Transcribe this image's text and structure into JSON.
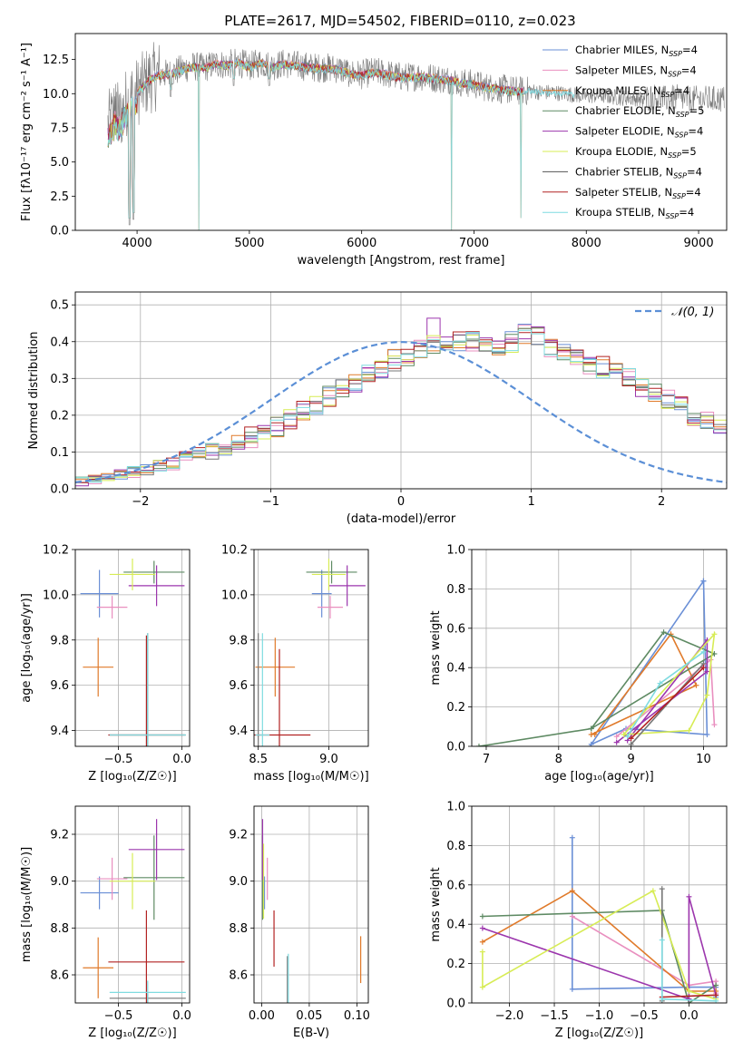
{
  "figure": {
    "title": "PLATE=2617, MJD=54502, FIBERID=0110, z=0.023",
    "colors": {
      "chabrier_miles": "#6a8fd6",
      "salpeter_miles": "#e98fbf",
      "kroupa_miles": "#e07a2a",
      "chabrier_elodie": "#5e8a63",
      "salpeter_elodie": "#9c36ad",
      "kroupa_elodie": "#d7ec55",
      "chabrier_stelib": "#777777",
      "salpeter_stelib": "#b22222",
      "kroupa_stelib": "#7fdbe0",
      "normal": "#5b8fd6",
      "grid": "#b0b0b0"
    }
  },
  "chart_data": [
    {
      "id": "spectrum",
      "type": "line",
      "title": "PLATE=2617, MJD=54502, FIBERID=0110, z=0.023",
      "xlabel": "wavelength [Angstrom, rest frame]",
      "ylabel": "Flux [fλ10⁻¹⁷ erg cm⁻² s⁻¹ A⁻¹]",
      "xlim": [
        3450,
        9250
      ],
      "ylim": [
        0,
        14.4
      ],
      "xticks": [
        "4000",
        "5000",
        "6000",
        "7000",
        "8000",
        "9000"
      ],
      "yticks": [
        "0.0",
        "2.5",
        "5.0",
        "7.5",
        "10.0",
        "12.5"
      ],
      "grid": false,
      "legend_position": "top-right",
      "series": [
        {
          "name": "Chabrier MILES, N",
          "sub": "SSP",
          "suffix": "=4",
          "color": "#6a8fd6"
        },
        {
          "name": "Salpeter MILES, N",
          "sub": "SSP",
          "suffix": "=4",
          "color": "#e98fbf"
        },
        {
          "name": "Kroupa MILES, N",
          "sub": "SSP",
          "suffix": "=4",
          "color": "#e07a2a"
        },
        {
          "name": "Chabrier ELODIE, N",
          "sub": "SSP",
          "suffix": "=5",
          "color": "#5e8a63"
        },
        {
          "name": "Salpeter ELODIE, N",
          "sub": "SSP",
          "suffix": "=4",
          "color": "#9c36ad"
        },
        {
          "name": "Kroupa ELODIE, N",
          "sub": "SSP",
          "suffix": "=5",
          "color": "#d7ec55"
        },
        {
          "name": "Chabrier STELIB, N",
          "sub": "SSP",
          "suffix": "=4",
          "color": "#555555"
        },
        {
          "name": "Salpeter STELIB, N",
          "sub": "SSP",
          "suffix": "=4",
          "color": "#b22222"
        },
        {
          "name": "Kroupa STELIB, N",
          "sub": "SSP",
          "suffix": "=4",
          "color": "#7fdbe0"
        }
      ],
      "model_envelope": [
        [
          3740,
          7.6
        ],
        [
          3800,
          8.6
        ],
        [
          3850,
          8.2
        ],
        [
          3900,
          9.3
        ],
        [
          3950,
          9.8
        ],
        [
          4000,
          10.1
        ],
        [
          4100,
          11.0
        ],
        [
          4200,
          11.4
        ],
        [
          4300,
          11.5
        ],
        [
          4400,
          11.8
        ],
        [
          4500,
          12.0
        ],
        [
          4600,
          11.9
        ],
        [
          4700,
          12.2
        ],
        [
          4800,
          12.1
        ],
        [
          4900,
          12.3
        ],
        [
          5000,
          12.0
        ],
        [
          5100,
          12.3
        ],
        [
          5200,
          12.0
        ],
        [
          5300,
          12.2
        ],
        [
          5400,
          12.1
        ],
        [
          5500,
          12.0
        ],
        [
          5600,
          11.9
        ],
        [
          5700,
          11.9
        ],
        [
          5800,
          11.8
        ],
        [
          5900,
          11.5
        ],
        [
          6000,
          11.4
        ],
        [
          6100,
          11.6
        ],
        [
          6200,
          11.5
        ],
        [
          6300,
          11.3
        ],
        [
          6400,
          11.2
        ],
        [
          6500,
          11.3
        ],
        [
          6600,
          11.2
        ],
        [
          6700,
          11.1
        ],
        [
          6800,
          11.0
        ],
        [
          6900,
          10.8
        ],
        [
          7000,
          10.7
        ],
        [
          7100,
          10.5
        ],
        [
          7200,
          10.4
        ],
        [
          7300,
          10.3
        ],
        [
          7400,
          10.2
        ],
        [
          7500,
          10.2
        ],
        [
          7600,
          10.1
        ],
        [
          7700,
          10.1
        ],
        [
          7800,
          10.0
        ],
        [
          7900,
          9.9
        ],
        [
          8000,
          9.8
        ],
        [
          8100,
          9.9
        ],
        [
          8200,
          9.8
        ],
        [
          8300,
          9.7
        ],
        [
          8400,
          9.7
        ],
        [
          8500,
          9.6
        ],
        [
          8600,
          9.8
        ],
        [
          8700,
          9.6
        ],
        [
          8800,
          9.7
        ],
        [
          8900,
          9.6
        ]
      ],
      "absorption_dips": [
        [
          3933,
          0.4
        ],
        [
          3968,
          0.8
        ],
        [
          4300,
          9.8
        ],
        [
          4861,
          10.6
        ],
        [
          5175,
          10.6
        ],
        [
          5890,
          10.9
        ],
        [
          6563,
          10.8
        ],
        [
          6870,
          10.2
        ]
      ],
      "artifact_drops": [
        [
          4550,
          0.0
        ],
        [
          6800,
          0.0
        ],
        [
          7420,
          0.9
        ]
      ]
    },
    {
      "id": "residuals",
      "type": "bar",
      "xlabel": "(data-model)/error",
      "ylabel": "Normed distribution",
      "xlim": [
        -2.5,
        2.5
      ],
      "ylim": [
        0,
        0.535
      ],
      "xticks": [
        "−2",
        "−1",
        "0",
        "1",
        "2"
      ],
      "yticks": [
        "0.0",
        "0.1",
        "0.2",
        "0.3",
        "0.4",
        "0.5"
      ],
      "grid": true,
      "legend_position": "top-right",
      "reference_curve": {
        "name": "𝒩(0, 1)",
        "mean": 0,
        "sigma": 1
      },
      "bin_edges_start": -2.5,
      "bin_width": 0.1,
      "base_histogram": [
        0.02,
        0.025,
        0.03,
        0.04,
        0.045,
        0.05,
        0.06,
        0.07,
        0.08,
        0.09,
        0.1,
        0.11,
        0.125,
        0.14,
        0.155,
        0.17,
        0.19,
        0.21,
        0.23,
        0.25,
        0.27,
        0.29,
        0.31,
        0.33,
        0.35,
        0.36,
        0.38,
        0.39,
        0.395,
        0.4,
        0.4,
        0.395,
        0.39,
        0.4,
        0.42,
        0.41,
        0.38,
        0.37,
        0.36,
        0.34,
        0.33,
        0.32,
        0.3,
        0.28,
        0.26,
        0.24,
        0.22,
        0.2,
        0.18,
        0.165,
        0.15,
        0.135,
        0.12,
        0.105,
        0.095,
        0.08,
        0.07,
        0.06,
        0.05,
        0.045,
        0.04,
        0.035,
        0.03,
        0.028,
        0.025,
        0.022,
        0.02,
        0.02,
        0.02,
        0.02
      ]
    },
    {
      "id": "age_vs_Z",
      "type": "scatter",
      "xlabel": "Z [log₁₀(Z/Z☉)]",
      "ylabel": "age  [log₁₀(age/yr)]",
      "xlim": [
        -0.84,
        0.06
      ],
      "ylim": [
        9.33,
        10.2
      ],
      "xticks": [
        "−0.5",
        "0.0"
      ],
      "yticks": [
        "9.4",
        "9.6",
        "9.8",
        "10.0",
        "10.2"
      ],
      "grid": true,
      "points": [
        {
          "series": "Chabrier MILES",
          "x": -0.65,
          "y": 10.005,
          "dx": 0.15,
          "dy": 0.105
        },
        {
          "series": "Salpeter MILES",
          "x": -0.55,
          "y": 9.945,
          "dx": 0.12,
          "dy": 0.05
        },
        {
          "series": "Kroupa MILES",
          "x": -0.66,
          "y": 9.68,
          "dx": 0.12,
          "dy": 0.13
        },
        {
          "series": "Chabrier ELODIE",
          "x": -0.22,
          "y": 10.1,
          "dx": 0.24,
          "dy": 0.05
        },
        {
          "series": "Salpeter ELODIE",
          "x": -0.2,
          "y": 10.04,
          "dx": 0.22,
          "dy": 0.09
        },
        {
          "series": "Kroupa ELODIE",
          "x": -0.39,
          "y": 10.09,
          "dx": 0.18,
          "dy": 0.07
        },
        {
          "series": "Chabrier STELIB",
          "x": -0.27,
          "y": 9.38,
          "dx": 0.3,
          "dy": 0.45
        },
        {
          "series": "Salpeter STELIB",
          "x": -0.28,
          "y": 9.38,
          "dx": 0.3,
          "dy": 0.44
        },
        {
          "series": "Kroupa STELIB",
          "x": -0.27,
          "y": 9.38,
          "dx": 0.3,
          "dy": 0.45
        }
      ]
    },
    {
      "id": "age_vs_mass",
      "type": "scatter",
      "xlabel": "mass [log₁₀(M/M☉)]",
      "ylabel": "",
      "xlim": [
        8.47,
        9.28
      ],
      "ylim": [
        9.33,
        10.2
      ],
      "xticks": [
        "8.5",
        "9.0"
      ],
      "yticks": [
        "9.4",
        "9.6",
        "9.8",
        "10.0",
        "10.2"
      ],
      "grid": true,
      "points": [
        {
          "series": "Chabrier MILES",
          "x": 8.95,
          "y": 10.005,
          "dx": 0.07,
          "dy": 0.105
        },
        {
          "series": "Salpeter MILES",
          "x": 9.01,
          "y": 9.945,
          "dx": 0.09,
          "dy": 0.05
        },
        {
          "series": "Kroupa MILES",
          "x": 8.62,
          "y": 9.68,
          "dx": 0.14,
          "dy": 0.13
        },
        {
          "series": "Chabrier ELODIE",
          "x": 9.02,
          "y": 10.1,
          "dx": 0.18,
          "dy": 0.05
        },
        {
          "series": "Salpeter ELODIE",
          "x": 9.13,
          "y": 10.04,
          "dx": 0.13,
          "dy": 0.09
        },
        {
          "series": "Kroupa ELODIE",
          "x": 9.0,
          "y": 10.09,
          "dx": 0.12,
          "dy": 0.07
        },
        {
          "series": "Chabrier STELIB",
          "x": 8.5,
          "y": 9.38,
          "dx": 0.02,
          "dy": 0.45
        },
        {
          "series": "Salpeter STELIB",
          "x": 8.65,
          "y": 9.38,
          "dx": 0.22,
          "dy": 0.38
        },
        {
          "series": "Kroupa STELIB",
          "x": 8.53,
          "y": 9.38,
          "dx": 0.05,
          "dy": 0.45
        }
      ]
    },
    {
      "id": "weight_vs_age",
      "type": "line",
      "xlabel": "age  [log₁₀(age/yr)]",
      "ylabel": "mass weight",
      "xlim": [
        6.8,
        10.32
      ],
      "ylim": [
        0,
        1.0
      ],
      "xticks": [
        "7",
        "8",
        "9",
        "10"
      ],
      "yticks": [
        "0.0",
        "0.2",
        "0.4",
        "0.6",
        "0.8",
        "1.0"
      ],
      "grid": true,
      "series": [
        {
          "name": "Chabrier MILES",
          "x": [
            10.0,
            10.05,
            8.93,
            8.45,
            10.0
          ],
          "y": [
            0.84,
            0.06,
            0.09,
            0.01,
            0.84
          ]
        },
        {
          "name": "Salpeter MILES",
          "x": [
            8.8,
            10.1,
            10.15
          ],
          "y": [
            0.05,
            0.44,
            0.11
          ]
        },
        {
          "name": "Kroupa MILES",
          "x": [
            8.5,
            9.55,
            9.9,
            8.45
          ],
          "y": [
            0.06,
            0.57,
            0.31,
            0.06
          ]
        },
        {
          "name": "Chabrier ELODIE",
          "x": [
            6.9,
            8.45,
            9.45,
            10.15,
            8.45
          ],
          "y": [
            0.0,
            0.09,
            0.58,
            0.47,
            0.09
          ]
        },
        {
          "name": "Salpeter ELODIE",
          "x": [
            8.95,
            10.05,
            10.05,
            8.8
          ],
          "y": [
            0.03,
            0.54,
            0.38,
            0.02
          ]
        },
        {
          "name": "Kroupa ELODIE",
          "x": [
            8.9,
            9.8,
            10.05,
            10.15,
            8.9
          ],
          "y": [
            0.06,
            0.08,
            0.26,
            0.57,
            0.06
          ]
        },
        {
          "name": "Chabrier STELIB",
          "x": [
            9.0,
            10.0
          ],
          "y": [
            0.01,
            0.42
          ]
        },
        {
          "name": "Salpeter STELIB",
          "x": [
            9.0,
            10.0
          ],
          "y": [
            0.04,
            0.4
          ]
        },
        {
          "name": "Kroupa STELIB",
          "x": [
            8.95,
            9.4,
            10.0
          ],
          "y": [
            0.05,
            0.32,
            0.48
          ]
        }
      ]
    },
    {
      "id": "mass_vs_Z",
      "type": "scatter",
      "xlabel": "Z [log₁₀(Z/Z☉)]",
      "ylabel": "mass [log₁₀(M/M☉)]",
      "xlim": [
        -0.84,
        0.06
      ],
      "ylim": [
        8.48,
        9.32
      ],
      "xticks": [
        "−0.5",
        "0.0"
      ],
      "yticks": [
        "8.6",
        "8.8",
        "9.0",
        "9.2"
      ],
      "grid": true,
      "points": [
        {
          "series": "Chabrier MILES",
          "x": -0.65,
          "y": 8.95,
          "dx": 0.15,
          "dy": 0.07
        },
        {
          "series": "Salpeter MILES",
          "x": -0.55,
          "y": 9.01,
          "dx": 0.12,
          "dy": 0.09
        },
        {
          "series": "Kroupa MILES",
          "x": -0.66,
          "y": 8.63,
          "dx": 0.12,
          "dy": 0.13
        },
        {
          "series": "Chabrier ELODIE",
          "x": -0.22,
          "y": 9.015,
          "dx": 0.24,
          "dy": 0.18
        },
        {
          "series": "Salpeter ELODIE",
          "x": -0.2,
          "y": 9.135,
          "dx": 0.22,
          "dy": 0.13
        },
        {
          "series": "Kroupa ELODIE",
          "x": -0.39,
          "y": 9.0,
          "dx": 0.18,
          "dy": 0.12
        },
        {
          "series": "Chabrier STELIB",
          "x": -0.27,
          "y": 8.5,
          "dx": 0.3,
          "dy": 0.02
        },
        {
          "series": "Salpeter STELIB",
          "x": -0.28,
          "y": 8.655,
          "dx": 0.3,
          "dy": 0.22
        },
        {
          "series": "Kroupa STELIB",
          "x": -0.27,
          "y": 8.525,
          "dx": 0.3,
          "dy": 0.05
        }
      ]
    },
    {
      "id": "mass_vs_ebv",
      "type": "scatter",
      "xlabel": "E(B-V)",
      "ylabel": "",
      "xlim": [
        -0.008,
        0.112
      ],
      "ylim": [
        8.48,
        9.32
      ],
      "xticks": [
        "0.00",
        "0.05",
        "0.10"
      ],
      "yticks": [
        "8.6",
        "8.8",
        "9.0",
        "9.2"
      ],
      "grid": true,
      "points": [
        {
          "series": "Chabrier MILES",
          "x": 0.003,
          "y": 8.95,
          "dx": 0,
          "dy": 0.07
        },
        {
          "series": "Salpeter MILES",
          "x": 0.006,
          "y": 9.01,
          "dx": 0,
          "dy": 0.09
        },
        {
          "series": "Kroupa MILES",
          "x": 0.104,
          "y": 8.665,
          "dx": 0,
          "dy": 0.1
        },
        {
          "series": "Chabrier ELODIE",
          "x": 0.001,
          "y": 9.015,
          "dx": 0,
          "dy": 0.18
        },
        {
          "series": "Salpeter ELODIE",
          "x": 0.001,
          "y": 9.135,
          "dx": 0,
          "dy": 0.13
        },
        {
          "series": "Kroupa ELODIE",
          "x": 0.002,
          "y": 9.0,
          "dx": 0,
          "dy": 0.16
        },
        {
          "series": "Chabrier STELIB",
          "x": 0.027,
          "y": 8.58,
          "dx": 0,
          "dy": 0.1
        },
        {
          "series": "Salpeter STELIB",
          "x": 0.013,
          "y": 8.755,
          "dx": 0,
          "dy": 0.12
        },
        {
          "series": "Kroupa STELIB",
          "x": 0.028,
          "y": 8.57,
          "dx": 0,
          "dy": 0.12
        }
      ]
    },
    {
      "id": "weight_vs_Z",
      "type": "line",
      "xlabel": "Z [log₁₀(Z/Z☉)]",
      "ylabel": "mass weight",
      "xlim": [
        -2.42,
        0.42
      ],
      "ylim": [
        0,
        1.0
      ],
      "xticks": [
        "−2.0",
        "−1.5",
        "−1.0",
        "−0.5",
        "0.0"
      ],
      "yticks": [
        "0.0",
        "0.2",
        "0.4",
        "0.6",
        "0.8",
        "1.0"
      ],
      "grid": true,
      "series": [
        {
          "name": "Chabrier MILES",
          "x": [
            -1.3,
            -1.3,
            0.0,
            0.3,
            0.3
          ],
          "y": [
            0.84,
            0.07,
            0.08,
            0.08,
            0.03
          ]
        },
        {
          "name": "Salpeter MILES",
          "x": [
            -1.3,
            0.0,
            0.3,
            0.3
          ],
          "y": [
            0.44,
            0.09,
            0.11,
            0.05
          ]
        },
        {
          "name": "Kroupa MILES",
          "x": [
            -2.3,
            -1.3,
            0.0,
            0.3
          ],
          "y": [
            0.31,
            0.57,
            0.06,
            0.06
          ]
        },
        {
          "name": "Chabrier ELODIE",
          "x": [
            -2.3,
            -0.3,
            0.0,
            0.3
          ],
          "y": [
            0.44,
            0.47,
            0.0,
            0.09
          ]
        },
        {
          "name": "Salpeter ELODIE",
          "x": [
            -2.3,
            0.0,
            0.0,
            0.3
          ],
          "y": [
            0.38,
            0.02,
            0.54,
            0.04
          ]
        },
        {
          "name": "Kroupa ELODIE",
          "x": [
            -2.3,
            -2.3,
            -0.4,
            0.0,
            0.3
          ],
          "y": [
            0.26,
            0.08,
            0.57,
            0.06,
            0.02
          ]
        },
        {
          "name": "Chabrier STELIB",
          "x": [
            -0.3,
            -0.3
          ],
          "y": [
            0.58,
            0.01
          ]
        },
        {
          "name": "Salpeter STELIB",
          "x": [
            -0.3,
            0.3
          ],
          "y": [
            0.03,
            0.04
          ]
        },
        {
          "name": "Kroupa STELIB",
          "x": [
            -0.3,
            -0.3,
            0.3
          ],
          "y": [
            0.32,
            0.02,
            0.01
          ]
        }
      ]
    }
  ]
}
